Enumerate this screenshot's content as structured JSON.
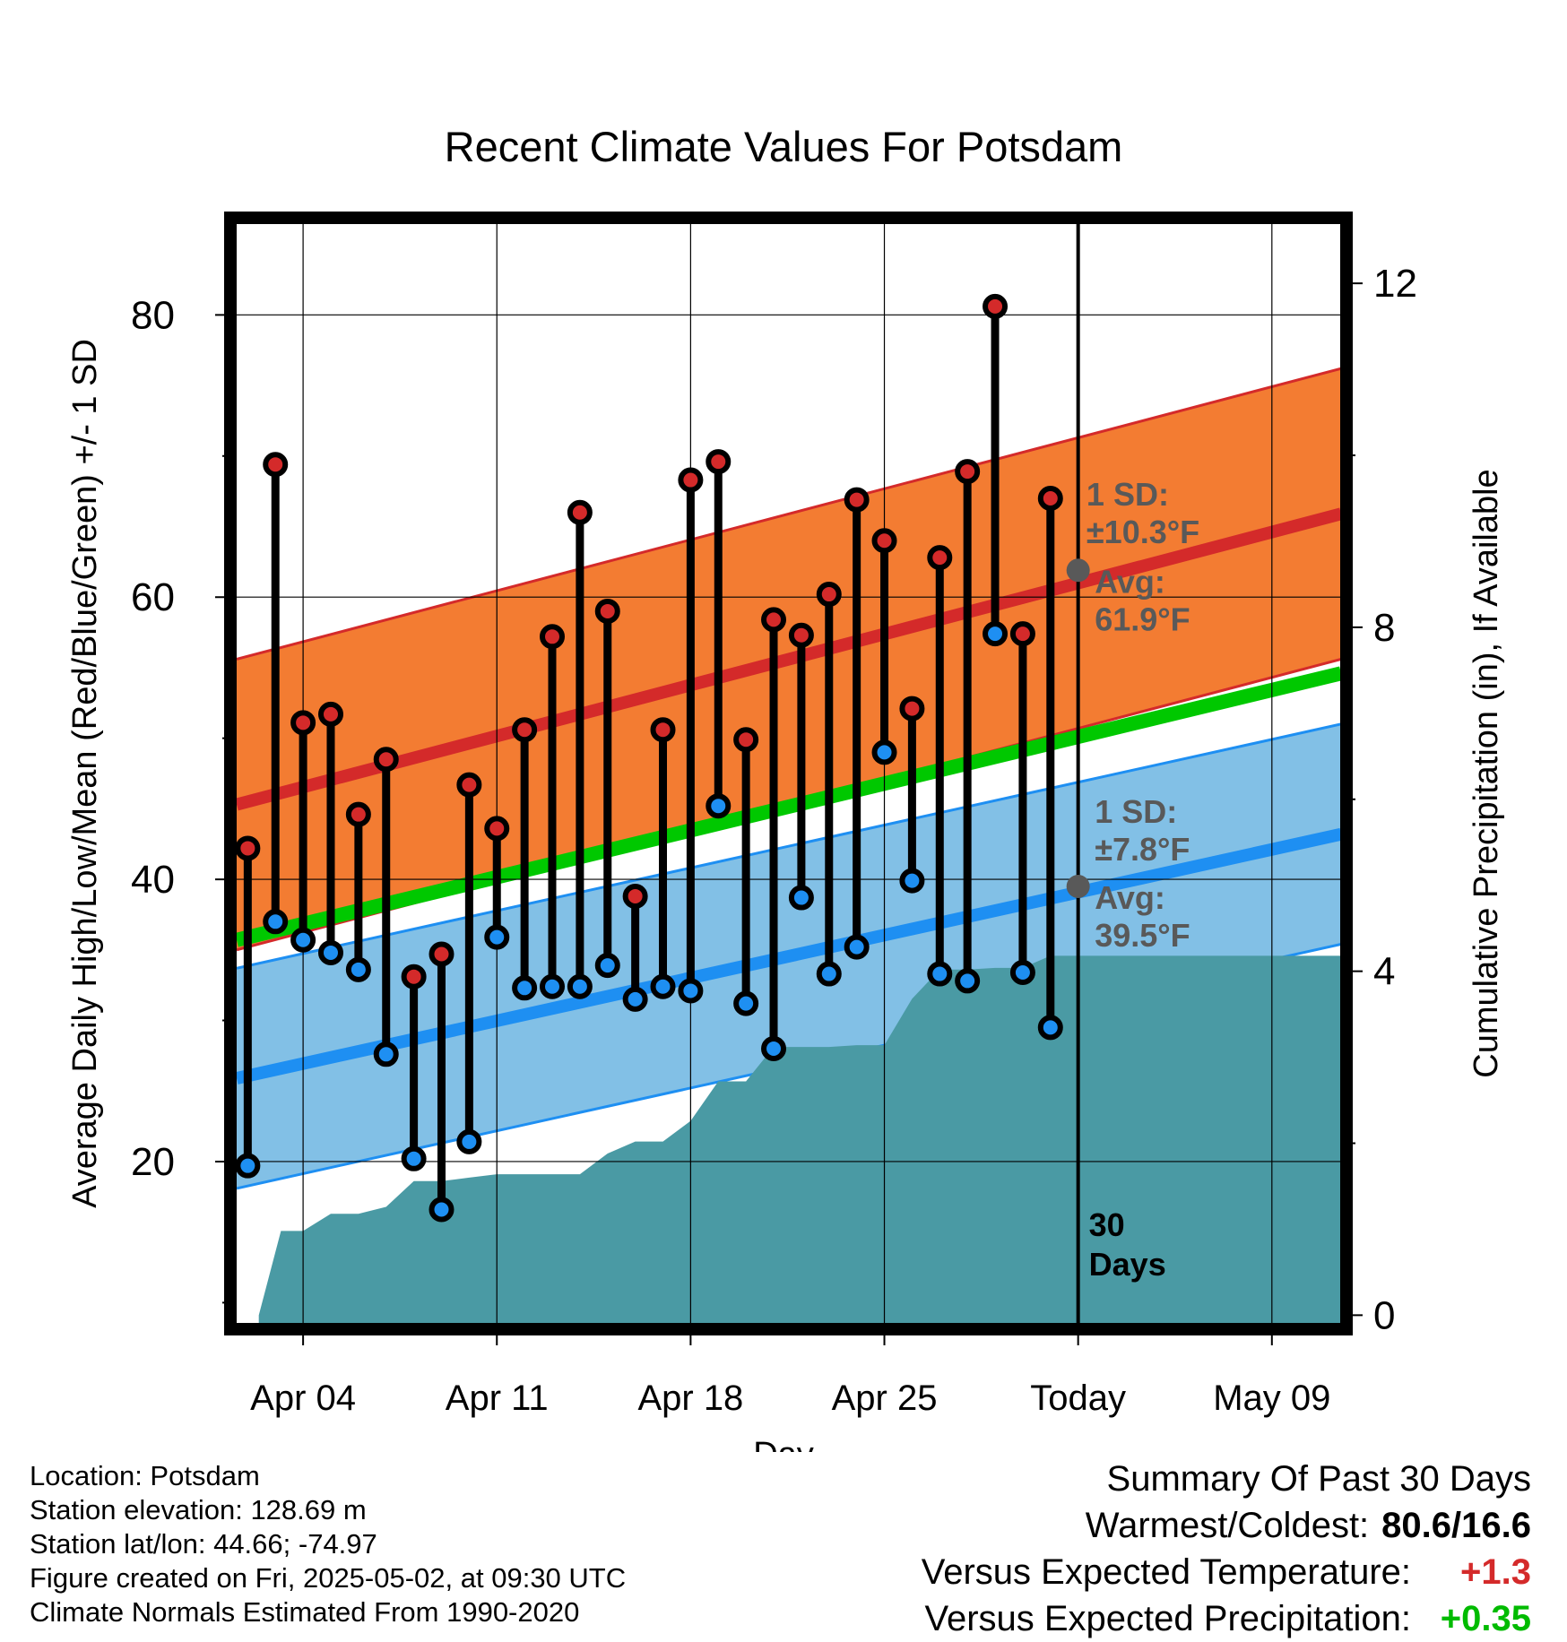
{
  "chart_data": {
    "type": "line",
    "title": "Recent Climate Values For Potsdam",
    "xlabel": "Day",
    "ylabel": "Average Daily High/Low/Mean (Red/Blue/Green) +/- 1 SD",
    "y2label": "Cumulative Precipitation (in), If Available",
    "x_ticks": [
      "Apr 04",
      "Apr 11",
      "Apr 18",
      "Apr 25",
      "Today",
      "May 09"
    ],
    "x_tick_days": [
      4,
      11,
      18,
      25,
      32,
      39
    ],
    "xlim": [
      1.6,
      41.5
    ],
    "ylim": [
      8.5,
      86.5
    ],
    "y_ticks": [
      20,
      40,
      60,
      80
    ],
    "y2lim": [
      -0.1,
      12.7
    ],
    "y2_ticks": [
      0,
      4,
      8,
      12
    ],
    "grid": true,
    "today_day": 32,
    "today_label": "30\nDays",
    "daily_observations": {
      "day": [
        2,
        3,
        4,
        5,
        6,
        7,
        8,
        9,
        10,
        11,
        12,
        13,
        14,
        15,
        16,
        17,
        18,
        19,
        20,
        21,
        22,
        23,
        24,
        25,
        26,
        27,
        28,
        29,
        30,
        31
      ],
      "high": [
        42.2,
        69.4,
        51.1,
        51.7,
        44.6,
        48.5,
        33.1,
        34.7,
        46.7,
        43.6,
        50.6,
        57.2,
        66.0,
        59.0,
        38.8,
        50.6,
        68.3,
        69.6,
        49.9,
        58.4,
        57.3,
        60.2,
        66.9,
        64.0,
        52.1,
        62.8,
        68.9,
        80.6,
        57.4,
        67.0
      ],
      "low": [
        19.7,
        37.0,
        35.7,
        34.8,
        33.6,
        27.6,
        20.2,
        16.6,
        21.4,
        35.9,
        32.3,
        32.4,
        32.4,
        33.9,
        31.5,
        32.4,
        32.1,
        45.2,
        31.2,
        28.0,
        38.7,
        33.3,
        35.2,
        49.0,
        39.9,
        33.3,
        32.8,
        57.4,
        33.4,
        29.5
      ]
    },
    "normals": {
      "day": [
        1.6,
        41.5
      ],
      "high_avg": [
        45.3,
        65.9
      ],
      "high_sd": 10.3,
      "low_avg": [
        25.9,
        43.2
      ],
      "low_sd": 7.8,
      "mean_avg": [
        35.7,
        54.6
      ]
    },
    "cumulative_precipitation": {
      "day": [
        2.4,
        3.2,
        4.0,
        5.0,
        6.0,
        7.0,
        8.0,
        9.0,
        10.0,
        11.0,
        12.0,
        13.0,
        14.0,
        15.0,
        16.0,
        17.0,
        18.0,
        19.0,
        20.0,
        21.0,
        22.0,
        23.0,
        24.0,
        25.0,
        26.0,
        27.0,
        28.0,
        29.0,
        30.0,
        31.0,
        32.0,
        41.5
      ],
      "value": [
        0.0,
        0.98,
        0.98,
        1.18,
        1.18,
        1.26,
        1.56,
        1.56,
        1.6,
        1.64,
        1.64,
        1.64,
        1.64,
        1.88,
        2.02,
        2.02,
        2.26,
        2.72,
        2.72,
        3.12,
        3.12,
        3.12,
        3.14,
        3.14,
        3.68,
        4.02,
        4.02,
        4.04,
        4.04,
        4.18,
        4.18,
        4.18
      ]
    },
    "annotations": [
      {
        "text_lines": [
          "1 SD:",
          "±10.3°F"
        ],
        "anchor_day": 32.3,
        "anchor_value": 66.5
      },
      {
        "text_lines": [
          "Avg:",
          "61.9°F"
        ],
        "anchor_day": 32.6,
        "anchor_value": 60.3,
        "marker_value": 61.9
      },
      {
        "text_lines": [
          "1 SD:",
          "±7.8°F"
        ],
        "anchor_day": 32.6,
        "anchor_value": 44.0
      },
      {
        "text_lines": [
          "Avg:",
          "39.5°F"
        ],
        "anchor_day": 32.6,
        "anchor_value": 37.9,
        "marker_value": 39.5
      }
    ],
    "colors": {
      "high_band": "#f37c32",
      "high_line": "#d42a2a",
      "low_band": "#82c0e6",
      "low_line": "#1e8ff2",
      "mean_line": "#00c800",
      "precip": "#4a9aa4",
      "high_dot": "#d42a2a",
      "low_dot": "#1e8ff2",
      "annotation": "#595959"
    }
  },
  "info": {
    "location": "Location: Potsdam",
    "elevation": "Station elevation: 128.69 m",
    "latlon": "Station lat/lon: 44.66; -74.97",
    "created": "Figure created on Fri, 2025-05-02, at 09:30 UTC",
    "normals": "Climate Normals Estimated From 1990-2020"
  },
  "summary": {
    "title": "Summary Of Past 30 Days",
    "warmest_label": "Warmest/Coldest:",
    "warmest_value": "80.6/16.6",
    "temp_label": "Versus Expected Temperature:",
    "temp_value": "+1.3",
    "temp_color": "#d42a2a",
    "precip_label": "Versus Expected Precipitation:",
    "precip_value": "+0.35",
    "precip_color": "#00bb00"
  }
}
